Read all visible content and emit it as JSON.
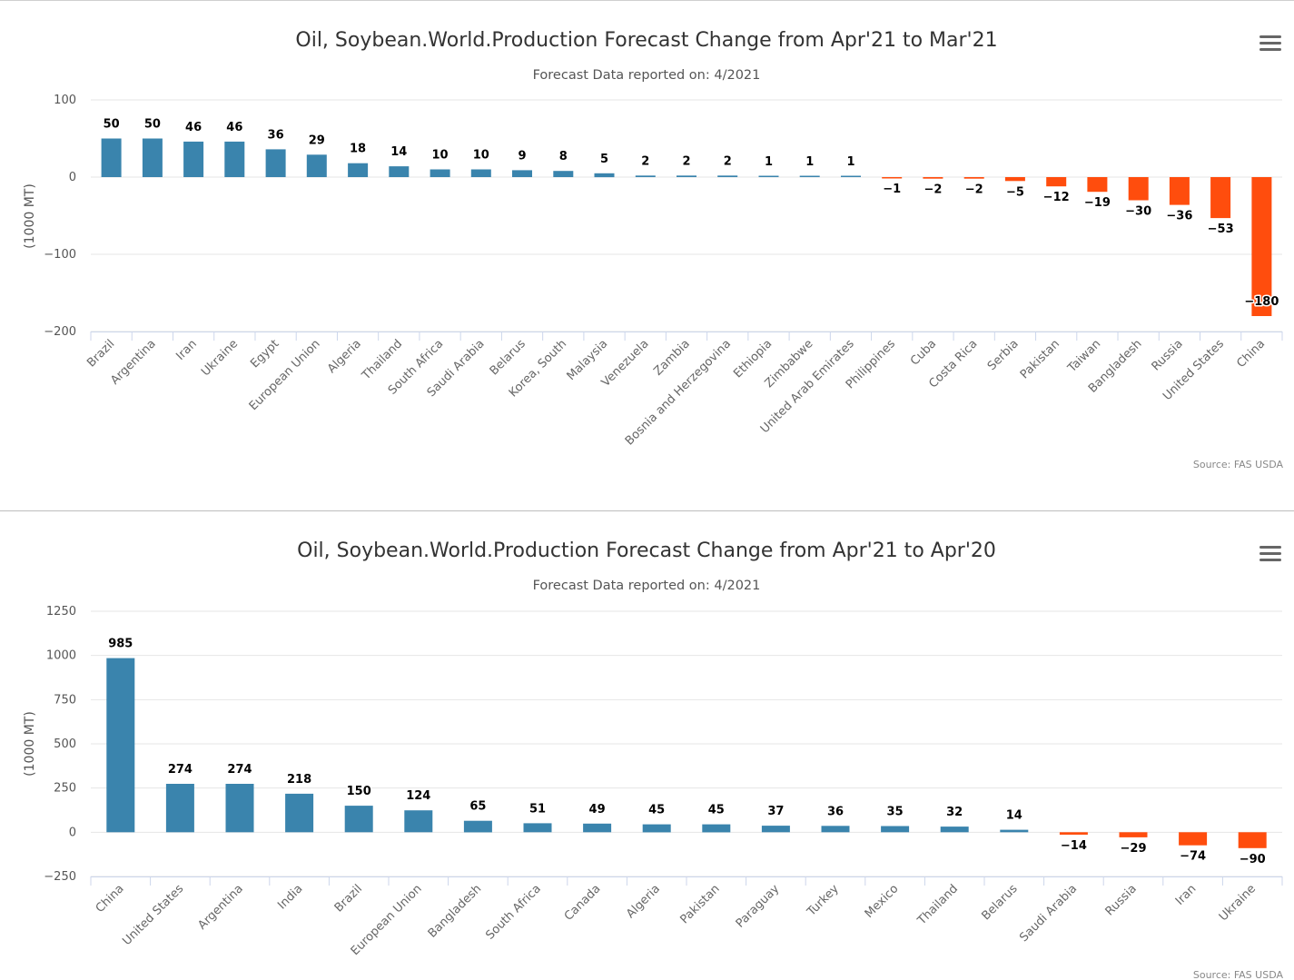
{
  "menu_icon": "hamburger-icon",
  "colors": {
    "positive": "#3a84ad",
    "negative": "#ff4d0d",
    "grid": "#e6e6e6",
    "axis": "#ccd6eb"
  },
  "chart_data": [
    {
      "type": "bar",
      "title": "Oil, Soybean.World.Production Forecast Change from Apr'21 to Mar'21",
      "subtitle": "Forecast Data reported on: 4/2021",
      "ylabel": "(1000 MT)",
      "xlabel": "",
      "credits": "Source: FAS USDA",
      "ylim": [
        -200,
        100
      ],
      "yticks": [
        100,
        0,
        -100,
        -200
      ],
      "yticklabels": [
        "100",
        "0",
        "−100",
        "−200"
      ],
      "categories": [
        "Brazil",
        "Argentina",
        "Iran",
        "Ukraine",
        "Egypt",
        "European Union",
        "Algeria",
        "Thailand",
        "South Africa",
        "Saudi Arabia",
        "Belarus",
        "Korea, South",
        "Malaysia",
        "Venezuela",
        "Zambia",
        "Bosnia and Herzegovina",
        "Ethiopia",
        "Zimbabwe",
        "United Arab Emirates",
        "Philippines",
        "Cuba",
        "Costa Rica",
        "Serbia",
        "Pakistan",
        "Taiwan",
        "Bangladesh",
        "Russia",
        "United States",
        "China"
      ],
      "values": [
        50,
        50,
        46,
        46,
        36,
        29,
        18,
        14,
        10,
        10,
        9,
        8,
        5,
        2,
        2,
        2,
        1,
        1,
        1,
        -1,
        -2,
        -2,
        -5,
        -12,
        -19,
        -30,
        -36,
        -53,
        -180
      ],
      "value_labels": [
        "50",
        "50",
        "46",
        "46",
        "36",
        "29",
        "18",
        "14",
        "10",
        "10",
        "9",
        "8",
        "5",
        "2",
        "2",
        "2",
        "1",
        "1",
        "1",
        "−1",
        "−2",
        "−2",
        "−5",
        "−12",
        "−19",
        "−30",
        "−36",
        "−53",
        "−180"
      ]
    },
    {
      "type": "bar",
      "title": "Oil, Soybean.World.Production Forecast Change from Apr'21 to Apr'20",
      "subtitle": "Forecast Data reported on: 4/2021",
      "ylabel": "(1000 MT)",
      "xlabel": "",
      "credits": "Source: FAS USDA",
      "ylim": [
        -250,
        1250
      ],
      "yticks": [
        1250,
        1000,
        750,
        500,
        250,
        0,
        -250
      ],
      "yticklabels": [
        "1250",
        "1000",
        "750",
        "500",
        "250",
        "0",
        "−250"
      ],
      "categories": [
        "China",
        "United States",
        "Argentina",
        "India",
        "Brazil",
        "European Union",
        "Bangladesh",
        "South Africa",
        "Canada",
        "Algeria",
        "Pakistan",
        "Paraguay",
        "Turkey",
        "Mexico",
        "Thailand",
        "Belarus",
        "Saudi Arabia",
        "Russia",
        "Iran",
        "Ukraine"
      ],
      "values": [
        985,
        274,
        274,
        218,
        150,
        124,
        65,
        51,
        49,
        45,
        45,
        37,
        36,
        35,
        32,
        14,
        -14,
        -29,
        -74,
        -90
      ],
      "value_labels": [
        "985",
        "274",
        "274",
        "218",
        "150",
        "124",
        "65",
        "51",
        "49",
        "45",
        "45",
        "37",
        "36",
        "35",
        "32",
        "14",
        "−14",
        "−29",
        "−74",
        "−90"
      ]
    }
  ]
}
